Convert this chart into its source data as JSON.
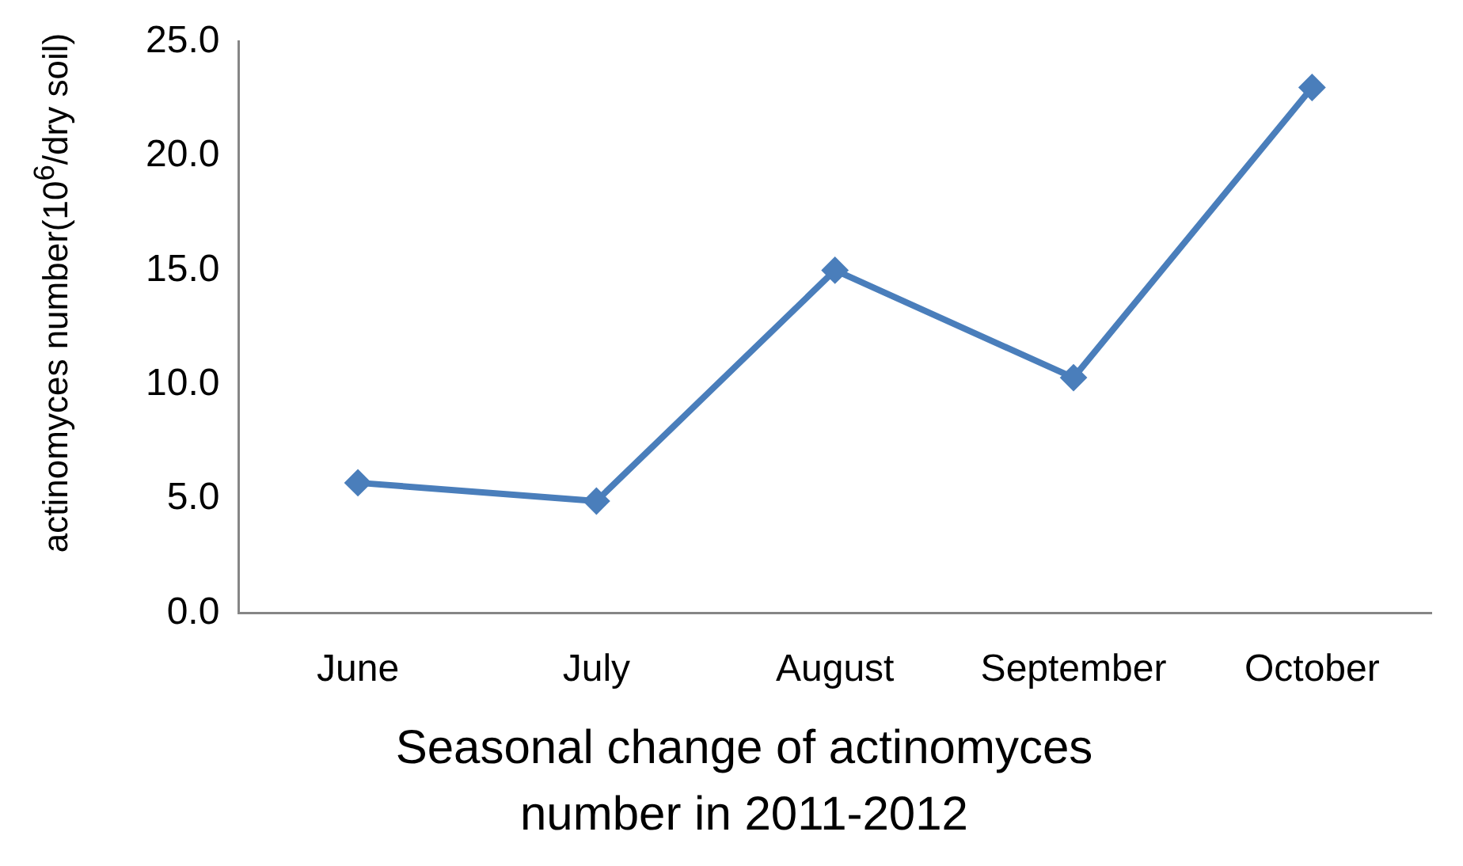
{
  "chart_data": {
    "type": "line",
    "xlabel": "Seasonal change of actinomyces number in 2011-2012",
    "ylabel": "actinomyces number(10$^{6}$/dry soil)",
    "categories": [
      "June",
      "July",
      "August",
      "September",
      "October"
    ],
    "series": [
      {
        "color": "#4a7ebb",
        "values": [
          5.7,
          4.9,
          15.0,
          10.3,
          23.0
        ]
      }
    ],
    "ylim": [
      0,
      25
    ],
    "yticks": [
      {
        "value": 0,
        "label": "0.0"
      },
      {
        "value": 5,
        "label": "5.0"
      },
      {
        "value": 10,
        "label": "10.0"
      },
      {
        "value": 15,
        "label": "15.0"
      },
      {
        "value": 20,
        "label": "20.0"
      },
      {
        "value": 25,
        "label": "25.0"
      }
    ],
    "grid": false,
    "legend": false,
    "marker": "diamond",
    "line_style": "solid"
  }
}
